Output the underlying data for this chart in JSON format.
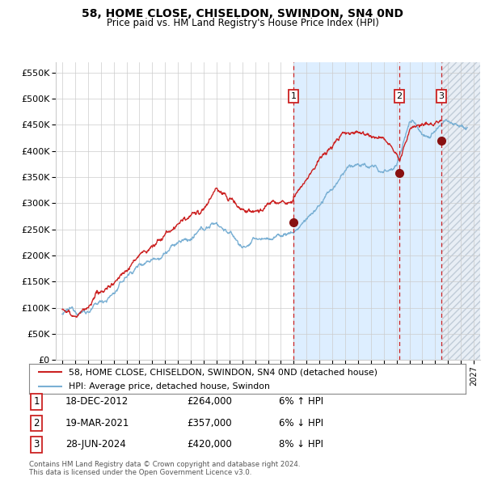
{
  "title": "58, HOME CLOSE, CHISELDON, SWINDON, SN4 0ND",
  "subtitle": "Price paid vs. HM Land Registry's House Price Index (HPI)",
  "ylim": [
    0,
    570000
  ],
  "yticks": [
    0,
    50000,
    100000,
    150000,
    200000,
    250000,
    300000,
    350000,
    400000,
    450000,
    500000,
    550000
  ],
  "xlim_start": 1994.5,
  "xlim_end": 2027.5,
  "sale_dates": [
    2012.97,
    2021.21,
    2024.49
  ],
  "sale_prices": [
    264000,
    357000,
    420000
  ],
  "sale_labels": [
    "1",
    "2",
    "3"
  ],
  "hpi_color": "#7ab0d4",
  "price_color": "#cc2222",
  "dot_color": "#881111",
  "vline_color": "#cc2222",
  "shade_color": "#ddeeff",
  "grid_color": "#cccccc",
  "background_color": "#ffffff",
  "legend_line1": "58, HOME CLOSE, CHISELDON, SWINDON, SN4 0ND (detached house)",
  "legend_line2": "HPI: Average price, detached house, Swindon",
  "table_entries": [
    {
      "num": "1",
      "date": "18-DEC-2012",
      "price": "£264,000",
      "pct": "6% ↑ HPI"
    },
    {
      "num": "2",
      "date": "19-MAR-2021",
      "price": "£357,000",
      "pct": "6% ↓ HPI"
    },
    {
      "num": "3",
      "date": "28-JUN-2024",
      "price": "£420,000",
      "pct": "8% ↓ HPI"
    }
  ],
  "footnote1": "Contains HM Land Registry data © Crown copyright and database right 2024.",
  "footnote2": "This data is licensed under the Open Government Licence v3.0."
}
